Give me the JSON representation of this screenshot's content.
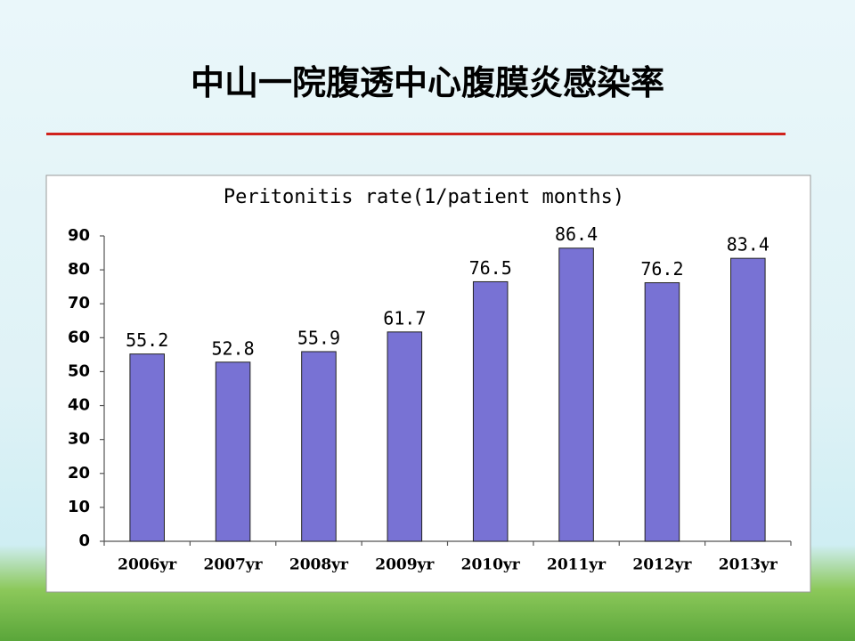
{
  "slide": {
    "title": "中山一院腹透中心腹膜炎感染率"
  },
  "chart_data": {
    "type": "bar",
    "title": "Peritonitis rate(1/patient months)",
    "categories": [
      "2006yr",
      "2007yr",
      "2008yr",
      "2009yr",
      "2010yr",
      "2011yr",
      "2012yr",
      "2013yr"
    ],
    "values": [
      55.2,
      52.8,
      55.9,
      61.7,
      76.5,
      86.4,
      76.2,
      83.4
    ],
    "color": "#7872d4",
    "ylim": [
      0,
      90
    ],
    "yticks": [
      0,
      10,
      20,
      30,
      40,
      50,
      60,
      70,
      80,
      90
    ],
    "grid": false
  }
}
